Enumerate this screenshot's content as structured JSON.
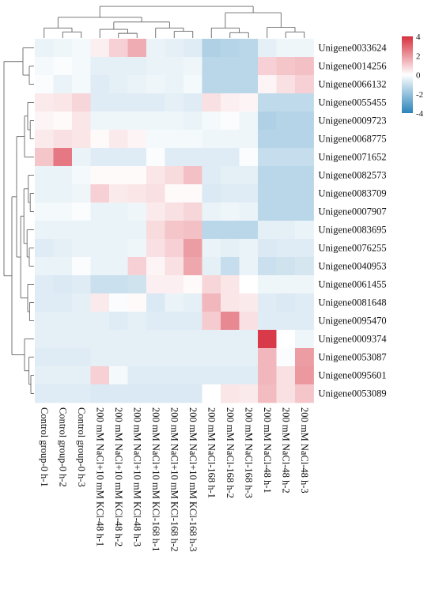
{
  "chart_data": {
    "type": "heatmap",
    "title": "",
    "colorscale": {
      "min": -4,
      "max": 4,
      "ticks": [
        4,
        2,
        0,
        -2,
        -4
      ],
      "low_color": "#2b83ba",
      "mid_color": "#ffffff",
      "high_color": "#d7303f"
    },
    "columns": [
      "Control group-0 h-1",
      "Control group-0 h-2",
      "Control group-0 h-3",
      "200 mM NaCl+10 mM KCl-48 h-1",
      "200 mM NaCl+10 mM KCl-48 h-2",
      "200 mM NaCl+10 mM KCl-48 h-3",
      "200 mM NaCl+10 mM KCl-168 h-1",
      "200 mM NaCl+10 mM KCl-168 h-2",
      "200 mM NaCl+10 mM KCl-168 h-3",
      "200 mM NaCl-168 h-1",
      "200 mM NaCl-168 h-2",
      "200 mM NaCl-168 h-3",
      "200 mM NaCl-48 h-1",
      "200 mM NaCl-48 h-2",
      "200 mM NaCl-48 h-3"
    ],
    "rows": [
      "Unigene0033624",
      "Unigene0014256",
      "Unigene0066132",
      "Unigene0055455",
      "Unigene0009723",
      "Unigene0068775",
      "Unigene0071652",
      "Unigene0082573",
      "Unigene0083709",
      "Unigene0007907",
      "Unigene0083695",
      "Unigene0076255",
      "Unigene0040953",
      "Unigene0061455",
      "Unigene0081648",
      "Unigene0095470",
      "Unigene0009374",
      "Unigene0053087",
      "Unigene0095601",
      "Unigene0053089"
    ],
    "values": [
      [
        -0.4,
        -0.3,
        -0.2,
        0.3,
        0.9,
        1.6,
        -0.4,
        -0.5,
        -0.6,
        -1.5,
        -1.4,
        -1.3,
        -0.5,
        -0.3,
        -0.3
      ],
      [
        -0.2,
        -0.1,
        -0.2,
        -0.5,
        -0.5,
        -0.5,
        -0.4,
        -0.4,
        -0.3,
        -1.3,
        -1.3,
        -1.3,
        0.9,
        1.1,
        1.2
      ],
      [
        -0.1,
        -0.4,
        -0.2,
        -0.6,
        -0.5,
        -0.4,
        -0.3,
        -0.4,
        -0.2,
        -1.3,
        -1.3,
        -1.3,
        0.2,
        0.6,
        0.9
      ],
      [
        0.4,
        0.5,
        0.8,
        -0.6,
        -0.6,
        -0.6,
        -0.6,
        -0.5,
        -0.6,
        0.6,
        0.3,
        0.2,
        -1.2,
        -1.2,
        -1.2
      ],
      [
        0.2,
        0.1,
        0.5,
        -0.3,
        -0.3,
        -0.3,
        -0.3,
        -0.3,
        -0.4,
        -0.2,
        -0.1,
        -0.3,
        -1.5,
        -1.4,
        -1.4
      ],
      [
        0.4,
        0.6,
        0.5,
        0.1,
        0.4,
        0.2,
        -0.2,
        -0.2,
        -0.2,
        -0.3,
        -0.3,
        -0.3,
        -1.4,
        -1.4,
        -1.4
      ],
      [
        1.1,
        2.6,
        -0.4,
        -0.6,
        -0.6,
        -0.6,
        -0.1,
        -0.6,
        -0.6,
        -0.6,
        -0.6,
        -0.1,
        -1.1,
        -1.1,
        -1.1
      ],
      [
        -0.4,
        -0.4,
        -0.2,
        0.1,
        0.1,
        0.1,
        0.5,
        0.7,
        1.2,
        -0.6,
        -0.5,
        -0.5,
        -1.3,
        -1.3,
        -1.3
      ],
      [
        -0.4,
        -0.4,
        -0.3,
        0.9,
        0.4,
        0.5,
        0.6,
        0.1,
        0.1,
        -0.7,
        -0.6,
        -0.6,
        -1.3,
        -1.3,
        -1.3
      ],
      [
        -0.2,
        -0.2,
        -0.1,
        -0.4,
        -0.4,
        -0.3,
        0.4,
        0.6,
        0.8,
        -0.4,
        -0.3,
        -0.4,
        -1.3,
        -1.3,
        -1.3
      ],
      [
        -0.4,
        -0.4,
        -0.4,
        -0.4,
        -0.4,
        -0.4,
        0.7,
        1.1,
        1.2,
        -1.3,
        -1.3,
        -1.3,
        -0.5,
        -0.5,
        -0.4
      ],
      [
        -0.6,
        -0.5,
        -0.4,
        -0.4,
        -0.4,
        -0.3,
        0.6,
        0.9,
        1.9,
        -0.4,
        -0.5,
        -0.4,
        -0.7,
        -0.6,
        -0.6
      ],
      [
        -0.4,
        -0.4,
        -0.1,
        -0.4,
        -0.4,
        0.9,
        0.2,
        0.6,
        1.7,
        -0.5,
        -1.1,
        -0.4,
        -1.0,
        -0.9,
        -0.8
      ],
      [
        -0.6,
        -0.7,
        -0.6,
        -1.0,
        -1.0,
        -0.9,
        0.3,
        0.3,
        0.1,
        0.8,
        0.5,
        0.0,
        -0.3,
        -0.3,
        -0.3
      ],
      [
        -0.6,
        -0.6,
        -0.5,
        0.4,
        -0.1,
        0.1,
        -0.7,
        -0.4,
        -0.5,
        1.4,
        0.5,
        0.4,
        -0.6,
        -0.7,
        -0.6
      ],
      [
        -0.5,
        -0.5,
        -0.5,
        -0.5,
        -0.6,
        -0.5,
        -0.6,
        -0.6,
        -0.6,
        1.0,
        2.3,
        0.6,
        -0.6,
        -0.6,
        -0.6
      ],
      [
        -0.5,
        -0.5,
        -0.5,
        -0.5,
        -0.5,
        -0.5,
        -0.5,
        -0.5,
        -0.5,
        -0.5,
        -0.5,
        -0.5,
        3.8,
        0.0,
        -0.3
      ],
      [
        -0.6,
        -0.6,
        -0.6,
        -0.5,
        -0.5,
        -0.5,
        -0.5,
        -0.5,
        -0.5,
        -0.5,
        -0.5,
        -0.5,
        1.4,
        -0.1,
        1.9
      ],
      [
        -0.5,
        -0.5,
        -0.5,
        0.9,
        -0.2,
        -0.6,
        -0.6,
        -0.6,
        -0.6,
        -0.6,
        -0.6,
        -0.6,
        1.4,
        0.6,
        2.0
      ],
      [
        -0.6,
        -0.6,
        -0.6,
        -0.7,
        -0.7,
        -0.7,
        -0.7,
        -0.7,
        -0.7,
        0.0,
        0.5,
        0.4,
        1.3,
        0.6,
        1.1
      ]
    ],
    "row_dendrogram": true,
    "column_dendrogram": true,
    "legend_position": "top-right"
  }
}
